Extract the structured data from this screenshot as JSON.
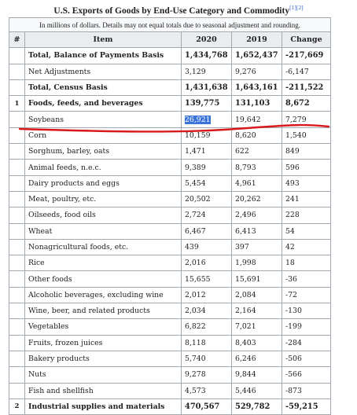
{
  "caption": {
    "title": "U.S. Exports of Goods by End-Use Category and Commodity",
    "refs": "[1][2]"
  },
  "note": "In millions of dollars. Details may not equal totals due to seasonal adjustment and rounding.",
  "headers": [
    "#",
    "Item",
    "2020",
    "2019",
    "Change"
  ],
  "rows": [
    {
      "idx": "",
      "item": "Total, Balance of Payments Basis",
      "y2020": "1,434,768",
      "y2019": "1,652,437",
      "change": "-217,669",
      "bold": true
    },
    {
      "idx": "",
      "item": "Net Adjustments",
      "y2020": "3,129",
      "y2019": "9,276",
      "change": "-6,147",
      "bold": false
    },
    {
      "idx": "",
      "item": "Total, Census Basis",
      "y2020": "1,431,638",
      "y2019": "1,643,161",
      "change": "-211,522",
      "bold": true
    },
    {
      "idx": "1",
      "item": "Foods, feeds, and beverages",
      "y2020": "139,775",
      "y2019": "131,103",
      "change": "8,672",
      "bold": true
    },
    {
      "idx": "",
      "item": "Soybeans",
      "y2020": "26,921",
      "y2019": "19,642",
      "change": "7,279",
      "bold": false,
      "selected": true
    },
    {
      "idx": "",
      "item": "Corn",
      "y2020": "10,159",
      "y2019": "8,620",
      "change": "1,540",
      "bold": false
    },
    {
      "idx": "",
      "item": "Sorghum, barley, oats",
      "y2020": "1,471",
      "y2019": "622",
      "change": "849",
      "bold": false
    },
    {
      "idx": "",
      "item": "Animal feeds, n.e.c.",
      "y2020": "9,389",
      "y2019": "8,793",
      "change": "596",
      "bold": false
    },
    {
      "idx": "",
      "item": "Dairy products and eggs",
      "y2020": "5,454",
      "y2019": "4,961",
      "change": "493",
      "bold": false
    },
    {
      "idx": "",
      "item": "Meat, poultry, etc.",
      "y2020": "20,502",
      "y2019": "20,262",
      "change": "241",
      "bold": false
    },
    {
      "idx": "",
      "item": "Oilseeds, food oils",
      "y2020": "2,724",
      "y2019": "2,496",
      "change": "228",
      "bold": false
    },
    {
      "idx": "",
      "item": "Wheat",
      "y2020": "6,467",
      "y2019": "6,413",
      "change": "54",
      "bold": false
    },
    {
      "idx": "",
      "item": "Nonagricultural foods, etc.",
      "y2020": "439",
      "y2019": "397",
      "change": "42",
      "bold": false
    },
    {
      "idx": "",
      "item": "Rice",
      "y2020": "2,016",
      "y2019": "1,998",
      "change": "18",
      "bold": false
    },
    {
      "idx": "",
      "item": "Other foods",
      "y2020": "15,655",
      "y2019": "15,691",
      "change": "-36",
      "bold": false
    },
    {
      "idx": "",
      "item": "Alcoholic beverages, excluding wine",
      "y2020": "2,012",
      "y2019": "2,084",
      "change": "-72",
      "bold": false
    },
    {
      "idx": "",
      "item": "Wine, beer, and related products",
      "y2020": "2,034",
      "y2019": "2,164",
      "change": "-130",
      "bold": false
    },
    {
      "idx": "",
      "item": "Vegetables",
      "y2020": "6,822",
      "y2019": "7,021",
      "change": "-199",
      "bold": false
    },
    {
      "idx": "",
      "item": "Fruits, frozen juices",
      "y2020": "8,118",
      "y2019": "8,403",
      "change": "-284",
      "bold": false
    },
    {
      "idx": "",
      "item": "Bakery products",
      "y2020": "5,740",
      "y2019": "6,246",
      "change": "-506",
      "bold": false
    },
    {
      "idx": "",
      "item": "Nuts",
      "y2020": "9,278",
      "y2019": "9,844",
      "change": "-566",
      "bold": false
    },
    {
      "idx": "",
      "item": "Fish and shellfish",
      "y2020": "4,573",
      "y2019": "5,446",
      "change": "-873",
      "bold": false
    },
    {
      "idx": "2",
      "item": "Industrial supplies and materials",
      "y2020": "470,567",
      "y2019": "529,782",
      "change": "-59,215",
      "bold": true
    }
  ],
  "annotation_color": "#d7191c",
  "selection_color": "#3b74d9"
}
